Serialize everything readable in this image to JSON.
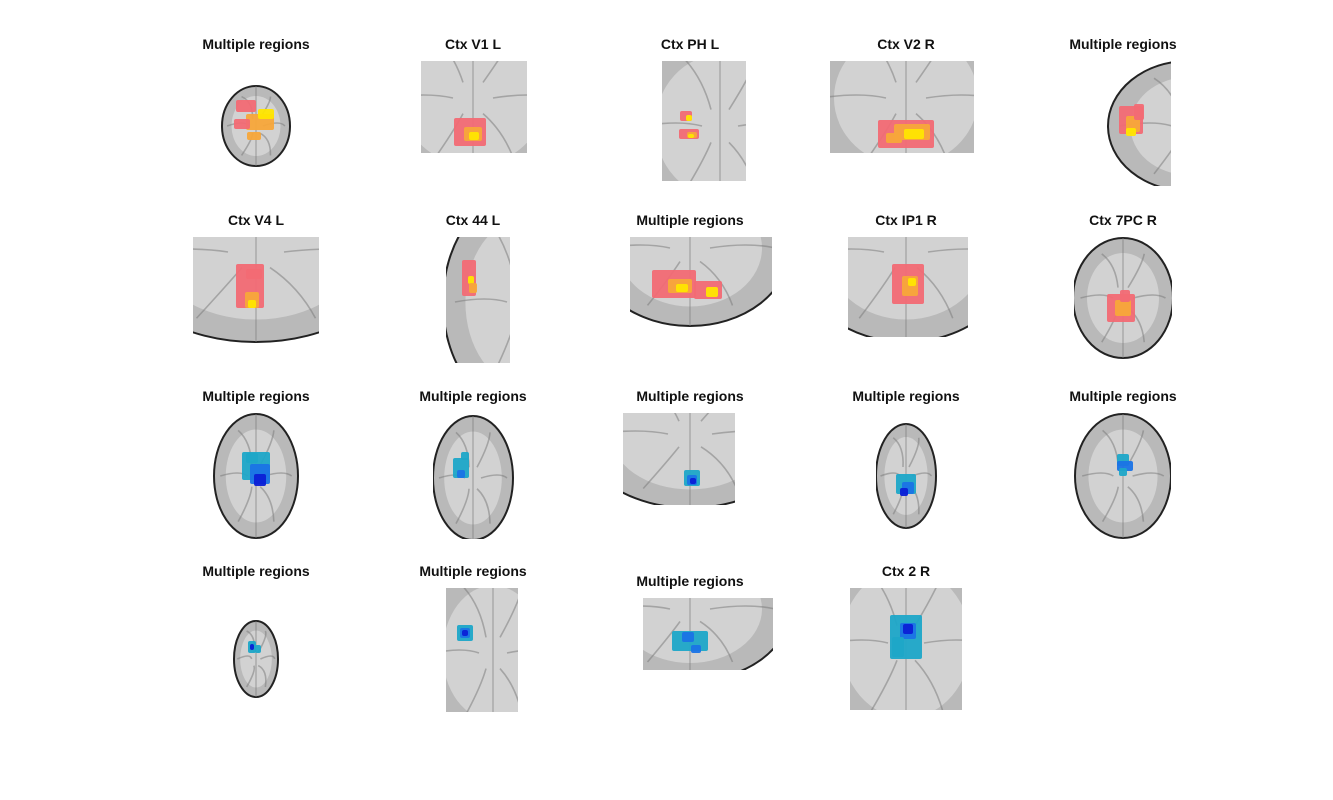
{
  "figure": {
    "panels": [
      {
        "title": "Multiple regions",
        "kind": "whole-axial",
        "activation": "positive"
      },
      {
        "title": "Ctx V1 L",
        "kind": "occipital-crop",
        "activation": "positive"
      },
      {
        "title": "Ctx PH L",
        "kind": "temporal-crop",
        "activation": "positive"
      },
      {
        "title": "Ctx V2 R",
        "kind": "occipital-crop",
        "activation": "positive"
      },
      {
        "title": "Multiple regions",
        "kind": "hemi-axial",
        "activation": "positive"
      },
      {
        "title": "Ctx V4 L",
        "kind": "zoom-crop",
        "activation": "positive"
      },
      {
        "title": "Ctx 44 L",
        "kind": "frontal-sliver",
        "activation": "positive"
      },
      {
        "title": "Multiple regions",
        "kind": "occipital-crop",
        "activation": "positive"
      },
      {
        "title": "Ctx IP1 R",
        "kind": "zoom-crop",
        "activation": "positive"
      },
      {
        "title": "Ctx 7PC R",
        "kind": "parietal-crop",
        "activation": "positive"
      },
      {
        "title": "Multiple regions",
        "kind": "whole-axial",
        "activation": "negative"
      },
      {
        "title": "Multiple regions",
        "kind": "hemi-axial",
        "activation": "negative"
      },
      {
        "title": "Multiple regions",
        "kind": "occipital-crop",
        "activation": "negative"
      },
      {
        "title": "Multiple regions",
        "kind": "whole-axial",
        "activation": "negative"
      },
      {
        "title": "Multiple regions",
        "kind": "whole-axial",
        "activation": "negative"
      },
      {
        "title": "Multiple regions",
        "kind": "small-axial",
        "activation": "negative"
      },
      {
        "title": "Multiple regions",
        "kind": "hemi-axial",
        "activation": "negative"
      },
      {
        "title": "Multiple regions",
        "kind": "occipital-crop",
        "activation": "negative"
      },
      {
        "title": "Ctx 2 R",
        "kind": "zoom-crop",
        "activation": "negative"
      }
    ],
    "colors": {
      "background": "#ffffff",
      "brain_gray": "#b9b9b9",
      "brain_light": "#d8d8d8",
      "brain_dark": "#7d7d7d",
      "outline": "#222222",
      "pos_base": "#f26a74",
      "pos_mid": "#f7a63a",
      "pos_peak": "#ffe600",
      "neg_base": "#1ea6c8",
      "neg_mid": "#1a73e6",
      "neg_peak": "#0b1fd6"
    }
  }
}
